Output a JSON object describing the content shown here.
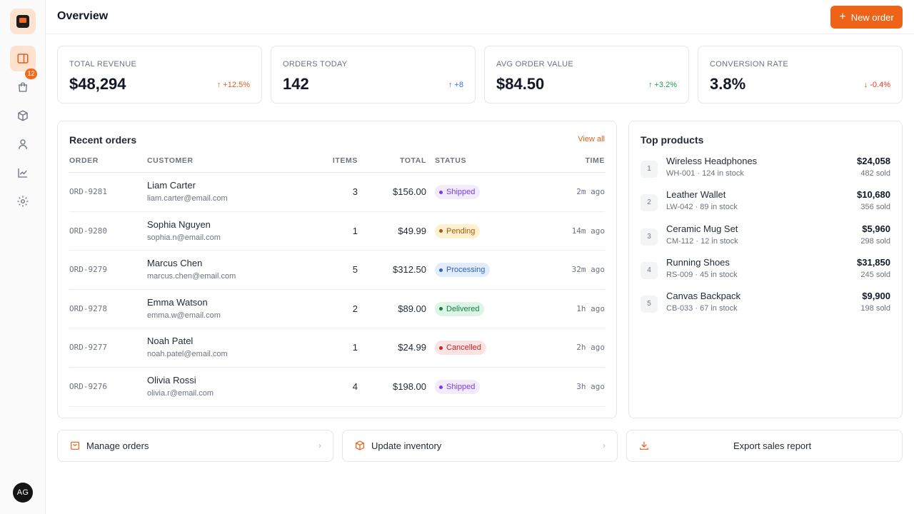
{
  "sidebar": {
    "items": [
      {
        "icon": "panel-icon",
        "active": true
      },
      {
        "icon": "shopping-bag-icon",
        "badge": "12"
      },
      {
        "icon": "package-icon"
      },
      {
        "icon": "user-icon"
      },
      {
        "icon": "chart-icon"
      },
      {
        "icon": "gear-icon"
      }
    ],
    "avatar": "AG"
  },
  "header": {
    "title": "Overview",
    "new_order_label": "New order"
  },
  "stats": [
    {
      "label": "TOTAL REVENUE",
      "value": "$48,294",
      "change": "↑ +12.5%"
    },
    {
      "label": "ORDERS TODAY",
      "value": "142",
      "change": "↑ +8"
    },
    {
      "label": "AVG ORDER VALUE",
      "value": "$84.50",
      "change": "↑ +3.2%"
    },
    {
      "label": "CONVERSION RATE",
      "value": "3.8%",
      "change": "↓ -0.4%"
    }
  ],
  "recent_orders": {
    "title": "Recent orders",
    "view_all": "View all",
    "columns": {
      "order": "ORDER",
      "customer": "CUSTOMER",
      "items": "ITEMS",
      "total": "TOTAL",
      "status": "STATUS",
      "time": "TIME"
    },
    "rows": [
      {
        "id": "ORD-9281",
        "name": "Liam Carter",
        "email": "liam.carter@email.com",
        "items": "3",
        "total": "$156.00",
        "status": "Shipped",
        "time": "2m ago"
      },
      {
        "id": "ORD-9280",
        "name": "Sophia Nguyen",
        "email": "sophia.n@email.com",
        "items": "1",
        "total": "$49.99",
        "status": "Pending",
        "time": "14m ago"
      },
      {
        "id": "ORD-9279",
        "name": "Marcus Chen",
        "email": "marcus.chen@email.com",
        "items": "5",
        "total": "$312.50",
        "status": "Processing",
        "time": "32m ago"
      },
      {
        "id": "ORD-9278",
        "name": "Emma Watson",
        "email": "emma.w@email.com",
        "items": "2",
        "total": "$89.00",
        "status": "Delivered",
        "time": "1h ago"
      },
      {
        "id": "ORD-9277",
        "name": "Noah Patel",
        "email": "noah.patel@email.com",
        "items": "1",
        "total": "$24.99",
        "status": "Cancelled",
        "time": "2h ago"
      },
      {
        "id": "ORD-9276",
        "name": "Olivia Rossi",
        "email": "olivia.r@email.com",
        "items": "4",
        "total": "$198.00",
        "status": "Shipped",
        "time": "3h ago"
      }
    ]
  },
  "top_products": {
    "title": "Top products",
    "items": [
      {
        "rank": "1",
        "name": "Wireless Headphones",
        "meta": "WH-001 · 124 in stock",
        "revenue": "$24,058",
        "sold": "482 sold"
      },
      {
        "rank": "2",
        "name": "Leather Wallet",
        "meta": "LW-042 · 89 in stock",
        "revenue": "$10,680",
        "sold": "356 sold"
      },
      {
        "rank": "3",
        "name": "Ceramic Mug Set",
        "meta": "CM-112 · 12 in stock",
        "revenue": "$5,960",
        "sold": "298 sold"
      },
      {
        "rank": "4",
        "name": "Running Shoes",
        "meta": "RS-009 · 45 in stock",
        "revenue": "$31,850",
        "sold": "245 sold"
      },
      {
        "rank": "5",
        "name": "Canvas Backpack",
        "meta": "CB-033 · 67 in stock",
        "revenue": "$9,900",
        "sold": "198 sold"
      }
    ]
  },
  "actions": {
    "manage_orders": "Manage orders",
    "update_inventory": "Update inventory",
    "export_report": "Export sales report"
  },
  "colors": {
    "accent": "#ef6319",
    "status": {
      "Shipped": {
        "bg": "#f1ebfb",
        "fg": "#7c3aed"
      },
      "Pending": {
        "bg": "#fdf1cf",
        "fg": "#b45309"
      },
      "Processing": {
        "bg": "#e3ecfb",
        "fg": "#2f5fbf"
      },
      "Delivered": {
        "bg": "#dcf5e6",
        "fg": "#15803d"
      },
      "Cancelled": {
        "bg": "#fbe3e3",
        "fg": "#c42525"
      }
    }
  }
}
